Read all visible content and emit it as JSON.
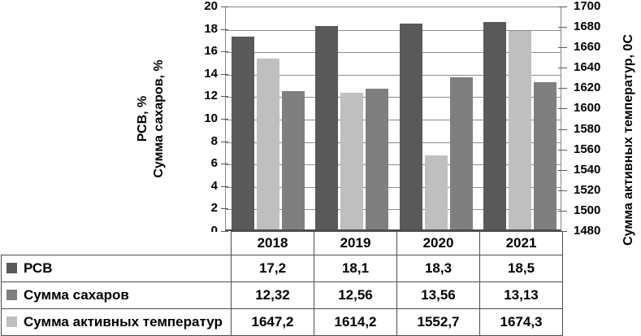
{
  "chart_data": {
    "type": "bar",
    "title": "",
    "categories": [
      "2018",
      "2019",
      "2020",
      "2021"
    ],
    "series": [
      {
        "name": "РСВ",
        "axis": "left",
        "color": "#595959",
        "values": [
          17.2,
          18.1,
          18.3,
          18.5
        ]
      },
      {
        "name": "Сумма активных температур",
        "axis": "right",
        "color": "#bfbfbf",
        "values": [
          1647.2,
          1614.2,
          1552.7,
          1674.3
        ]
      },
      {
        "name": "Сумма сахаров",
        "axis": "left",
        "color": "#7f7f7f",
        "values": [
          12.32,
          12.56,
          13.56,
          13.13
        ]
      }
    ],
    "left_axis": {
      "title_line1": "РСВ, %",
      "title_line2": "Сумма сахаров, %",
      "min": 0,
      "max": 20,
      "step": 2,
      "ticks": [
        0,
        2,
        4,
        6,
        8,
        10,
        12,
        14,
        16,
        18,
        20
      ]
    },
    "right_axis": {
      "title": "Сумма активных температур, 0С",
      "min": 1480,
      "max": 1700,
      "step": 20,
      "ticks": [
        1480,
        1500,
        1520,
        1540,
        1560,
        1580,
        1600,
        1620,
        1640,
        1660,
        1680,
        1700
      ]
    },
    "grid": true,
    "legend_position": "table-left"
  },
  "table": {
    "header": [
      "2018",
      "2019",
      "2020",
      "2021"
    ],
    "rows": [
      {
        "label": "РСВ",
        "swatch": "#595959",
        "values": [
          "17,2",
          "18,1",
          "18,3",
          "18,5"
        ]
      },
      {
        "label": "Сумма сахаров",
        "swatch": "#7f7f7f",
        "values": [
          "12,32",
          "12,56",
          "13,56",
          "13,13"
        ]
      },
      {
        "label": "Сумма активных температур",
        "swatch": "#bfbfbf",
        "values": [
          "1647,2",
          "1614,2",
          "1552,7",
          "1674,3"
        ]
      }
    ]
  },
  "colors": {
    "bar_dark": "#595959",
    "bar_medium": "#7f7f7f",
    "bar_light": "#bfbfbf",
    "gridline": "#8c8c8c",
    "border": "#4d4d4d"
  }
}
